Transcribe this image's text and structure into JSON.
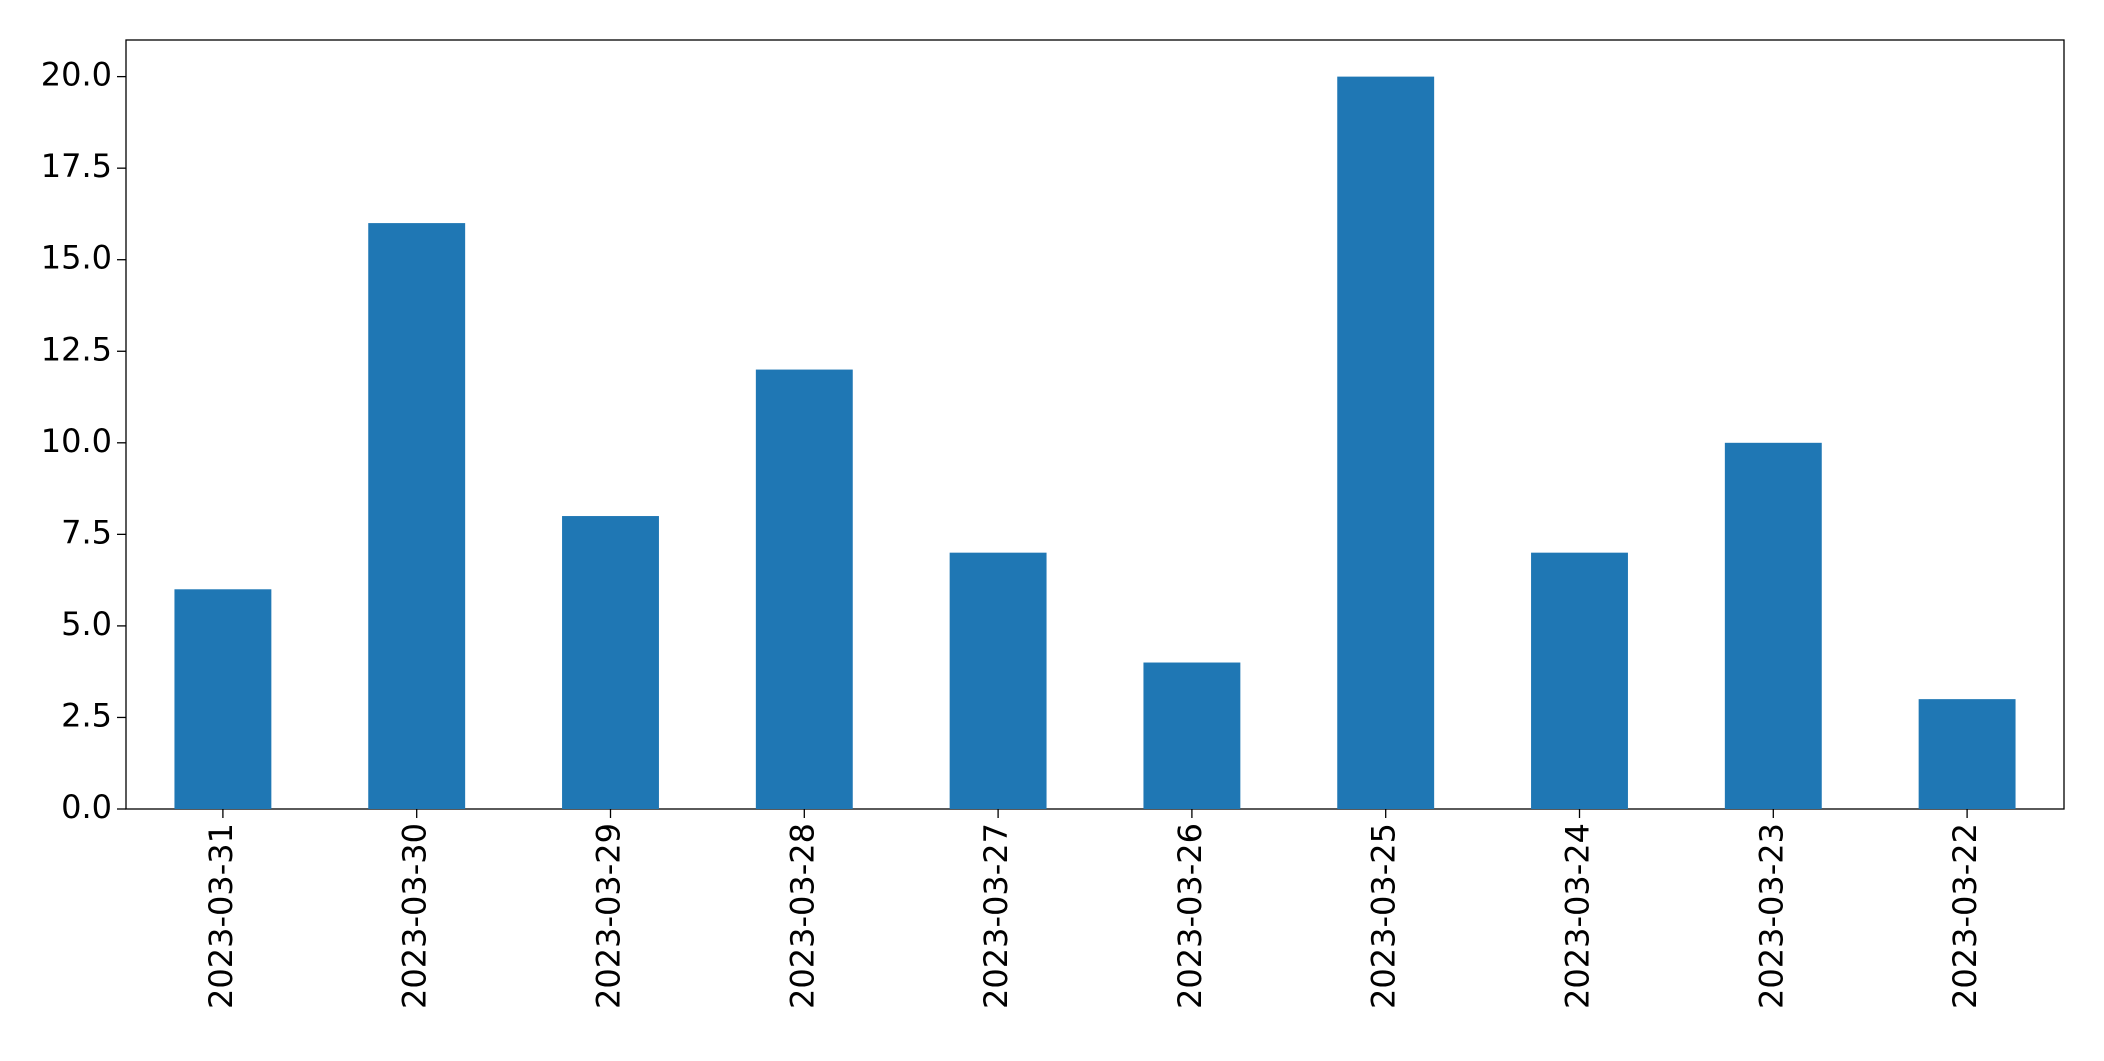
{
  "chart_data": {
    "type": "bar",
    "categories": [
      "2023-03-31",
      "2023-03-30",
      "2023-03-29",
      "2023-03-28",
      "2023-03-27",
      "2023-03-26",
      "2023-03-25",
      "2023-03-24",
      "2023-03-23",
      "2023-03-22"
    ],
    "values": [
      6,
      16,
      8,
      12,
      7,
      4,
      20,
      7,
      10,
      3
    ],
    "color": "#1f77b4",
    "ylim": [
      0,
      21
    ],
    "yticks": [
      {
        "value": 0,
        "label": "0.0"
      },
      2.5,
      {
        "value": 5,
        "label": "5.0"
      },
      7.5,
      {
        "value": 10,
        "label": "10.0"
      },
      12.5,
      {
        "value": 15,
        "label": "15.0"
      },
      17.5,
      {
        "value": 20,
        "label": "20.0"
      }
    ],
    "grid": false
  }
}
